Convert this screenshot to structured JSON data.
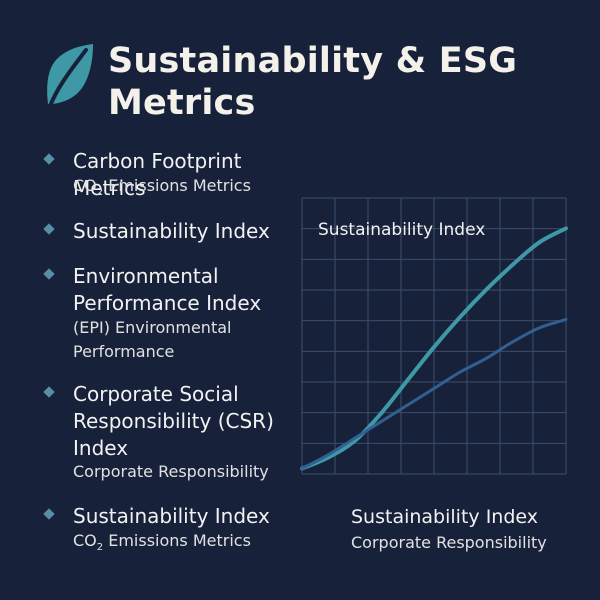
{
  "header": {
    "title": "Sustainability & ESG Metrics",
    "icon": "leaf-icon"
  },
  "metrics": [
    {
      "label": "Carbon Footprint Metrics",
      "detail_prefix": "CO",
      "detail_subscript": "2",
      "detail_suffix": " Emissions Metrics"
    },
    {
      "label": "Sustainability Index"
    },
    {
      "label": "Environmental Performance  Index",
      "detail": "(EPI)  Environmental Performance"
    },
    {
      "label": "Corporate Social Responsibility (CSR) Index",
      "detail": "Corporate Responsibility"
    },
    {
      "label": "Sustainability Index",
      "detail_prefix": "CO",
      "detail_subscript": "2",
      "detail_suffix": " Emissions Metrics"
    }
  ],
  "chart": {
    "line_label": "Sustainability Index",
    "title": "Sustainability Index",
    "subtitle": "Corporate Responsibility"
  },
  "chart_data": {
    "type": "line",
    "title": "Sustainability Index",
    "subtitle": "Corporate Responsibility",
    "x": [
      0,
      1,
      2,
      3,
      4,
      5,
      6,
      7,
      8,
      9,
      10
    ],
    "series": [
      {
        "name": "Sustainability Index",
        "color": "#3e98a5",
        "values": [
          0.2,
          0.6,
          1.2,
          2.2,
          3.4,
          4.6,
          5.7,
          6.7,
          7.6,
          8.4,
          8.9
        ]
      },
      {
        "values": [
          0.2,
          0.7,
          1.3,
          1.9,
          2.5,
          3.1,
          3.7,
          4.2,
          4.8,
          5.3,
          5.6
        ],
        "color": "#325f91"
      }
    ],
    "xlim": [
      0,
      10
    ],
    "ylim": [
      0,
      10
    ],
    "grid": true
  },
  "colors": {
    "background": "#17223a",
    "accent": "#3e98a5",
    "bullet": "#5a8ea6",
    "grid": "#3b4d6c"
  }
}
